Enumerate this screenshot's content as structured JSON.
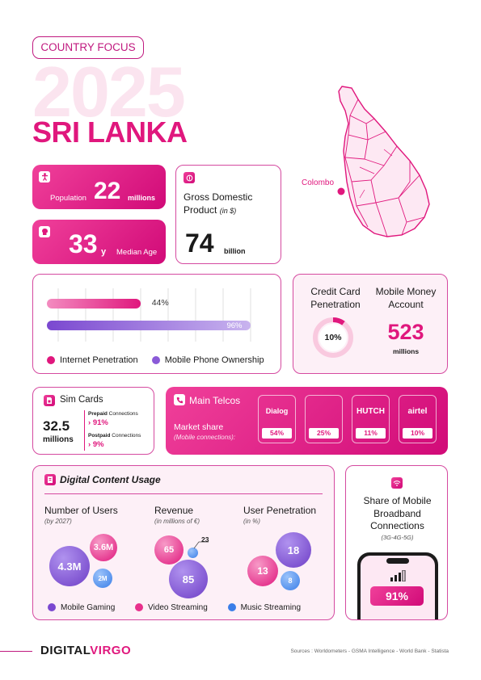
{
  "header": {
    "badge": "COUNTRY FOCUS",
    "year": "2025",
    "country": "SRI LANKA"
  },
  "map": {
    "city": "Colombo"
  },
  "population": {
    "label": "Population",
    "value": "22",
    "unit": "millions"
  },
  "median_age": {
    "value": "33",
    "suffix": "y",
    "label": "Median Age"
  },
  "gdp": {
    "label_line1": "Gross Domestic",
    "label_line2": "Product",
    "qualifier": "(in $)",
    "value": "74",
    "unit": "billion"
  },
  "penetration_bars": {
    "internet": {
      "label": "Internet Penetration",
      "value": 44,
      "display": "44%",
      "color": "#e8308c"
    },
    "mobile_phone": {
      "label": "Mobile Phone Ownership",
      "value": 96,
      "display": "96%",
      "color": "#8a5ad8"
    }
  },
  "credit_card": {
    "label_line1": "Credit Card",
    "label_line2": "Penetration",
    "value": 10,
    "display": "10%"
  },
  "mobile_money": {
    "label_line1": "Mobile Money",
    "label_line2": "Account",
    "value": "523",
    "unit": "millions"
  },
  "sim_cards": {
    "title": "Sim Cards",
    "value": "32.5",
    "unit": "millions",
    "prepaid": {
      "label": "Prepaid",
      "suffix": "Connections",
      "value": "91%"
    },
    "postpaid": {
      "label": "Postpaid",
      "suffix": "Connections",
      "value": "9%"
    }
  },
  "telcos": {
    "title": "Main Telcos",
    "label": "Market share",
    "sublabel": "(Mobile connections):",
    "items": [
      {
        "name": "Dialog",
        "share": "54%"
      },
      {
        "name": "",
        "share": "25%"
      },
      {
        "name": "HUTCH",
        "share": "11%"
      },
      {
        "name": "airtel",
        "share": "10%"
      }
    ]
  },
  "digital_content": {
    "title": "Digital Content Usage",
    "users": {
      "title": "Number of Users",
      "sub": "(by 2027)",
      "mobile_gaming": "4.3M",
      "video_streaming": "3.6M",
      "music_streaming": "2M"
    },
    "revenue": {
      "title": "Revenue",
      "sub": "(in millions of €)",
      "video_streaming": "65",
      "music_streaming": "23",
      "mobile_gaming": "85"
    },
    "penetration": {
      "title": "User Penetration",
      "sub": "(in %)",
      "mobile_gaming": "18",
      "video_streaming": "13",
      "music_streaming": "8"
    },
    "legend": {
      "mobile_gaming": "Mobile Gaming",
      "video_streaming": "Video Streaming",
      "music_streaming": "Music Streaming"
    }
  },
  "broadband": {
    "line1": "Share of Mobile",
    "line2": "Broadband",
    "line3": "Connections",
    "sub": "(3G-4G-5G)",
    "value": 91,
    "display": "91%"
  },
  "footer": {
    "brand_a": "DIGITAL",
    "brand_b": "VIRGO",
    "sources": "Sources : Worldometers - GSMA Intelligence - World Bank - Statista"
  },
  "colors": {
    "accent": "#e0177d",
    "purple": "#8a5ad8",
    "blue": "#4a8ef0"
  }
}
